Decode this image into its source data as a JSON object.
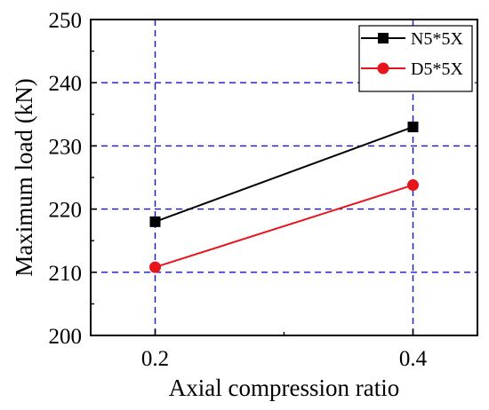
{
  "chart_data": {
    "type": "line",
    "title": "",
    "xlabel": "Axial compression ratio",
    "ylabel": "Maximum load (kN)",
    "xlim": [
      0.15,
      0.45
    ],
    "ylim": [
      200,
      250
    ],
    "x_ticks": [
      0.2,
      0.4
    ],
    "x_tick_labels": [
      "0.2",
      "0.4"
    ],
    "y_ticks": [
      200,
      210,
      220,
      230,
      240,
      250
    ],
    "y_tick_labels": [
      "200",
      "210",
      "220",
      "230",
      "240",
      "250"
    ],
    "grid": true,
    "grid_color": "#1414c8",
    "grid_style": "dashed",
    "legend_position": "top-right",
    "series": [
      {
        "name": "N5*5X",
        "x": [
          0.2,
          0.4
        ],
        "y": [
          218.0,
          233.0
        ],
        "color": "#000000",
        "marker": "square"
      },
      {
        "name": "D5*5X",
        "x": [
          0.2,
          0.4
        ],
        "y": [
          210.8,
          223.8
        ],
        "color": "#e8141c",
        "marker": "circle"
      }
    ]
  }
}
